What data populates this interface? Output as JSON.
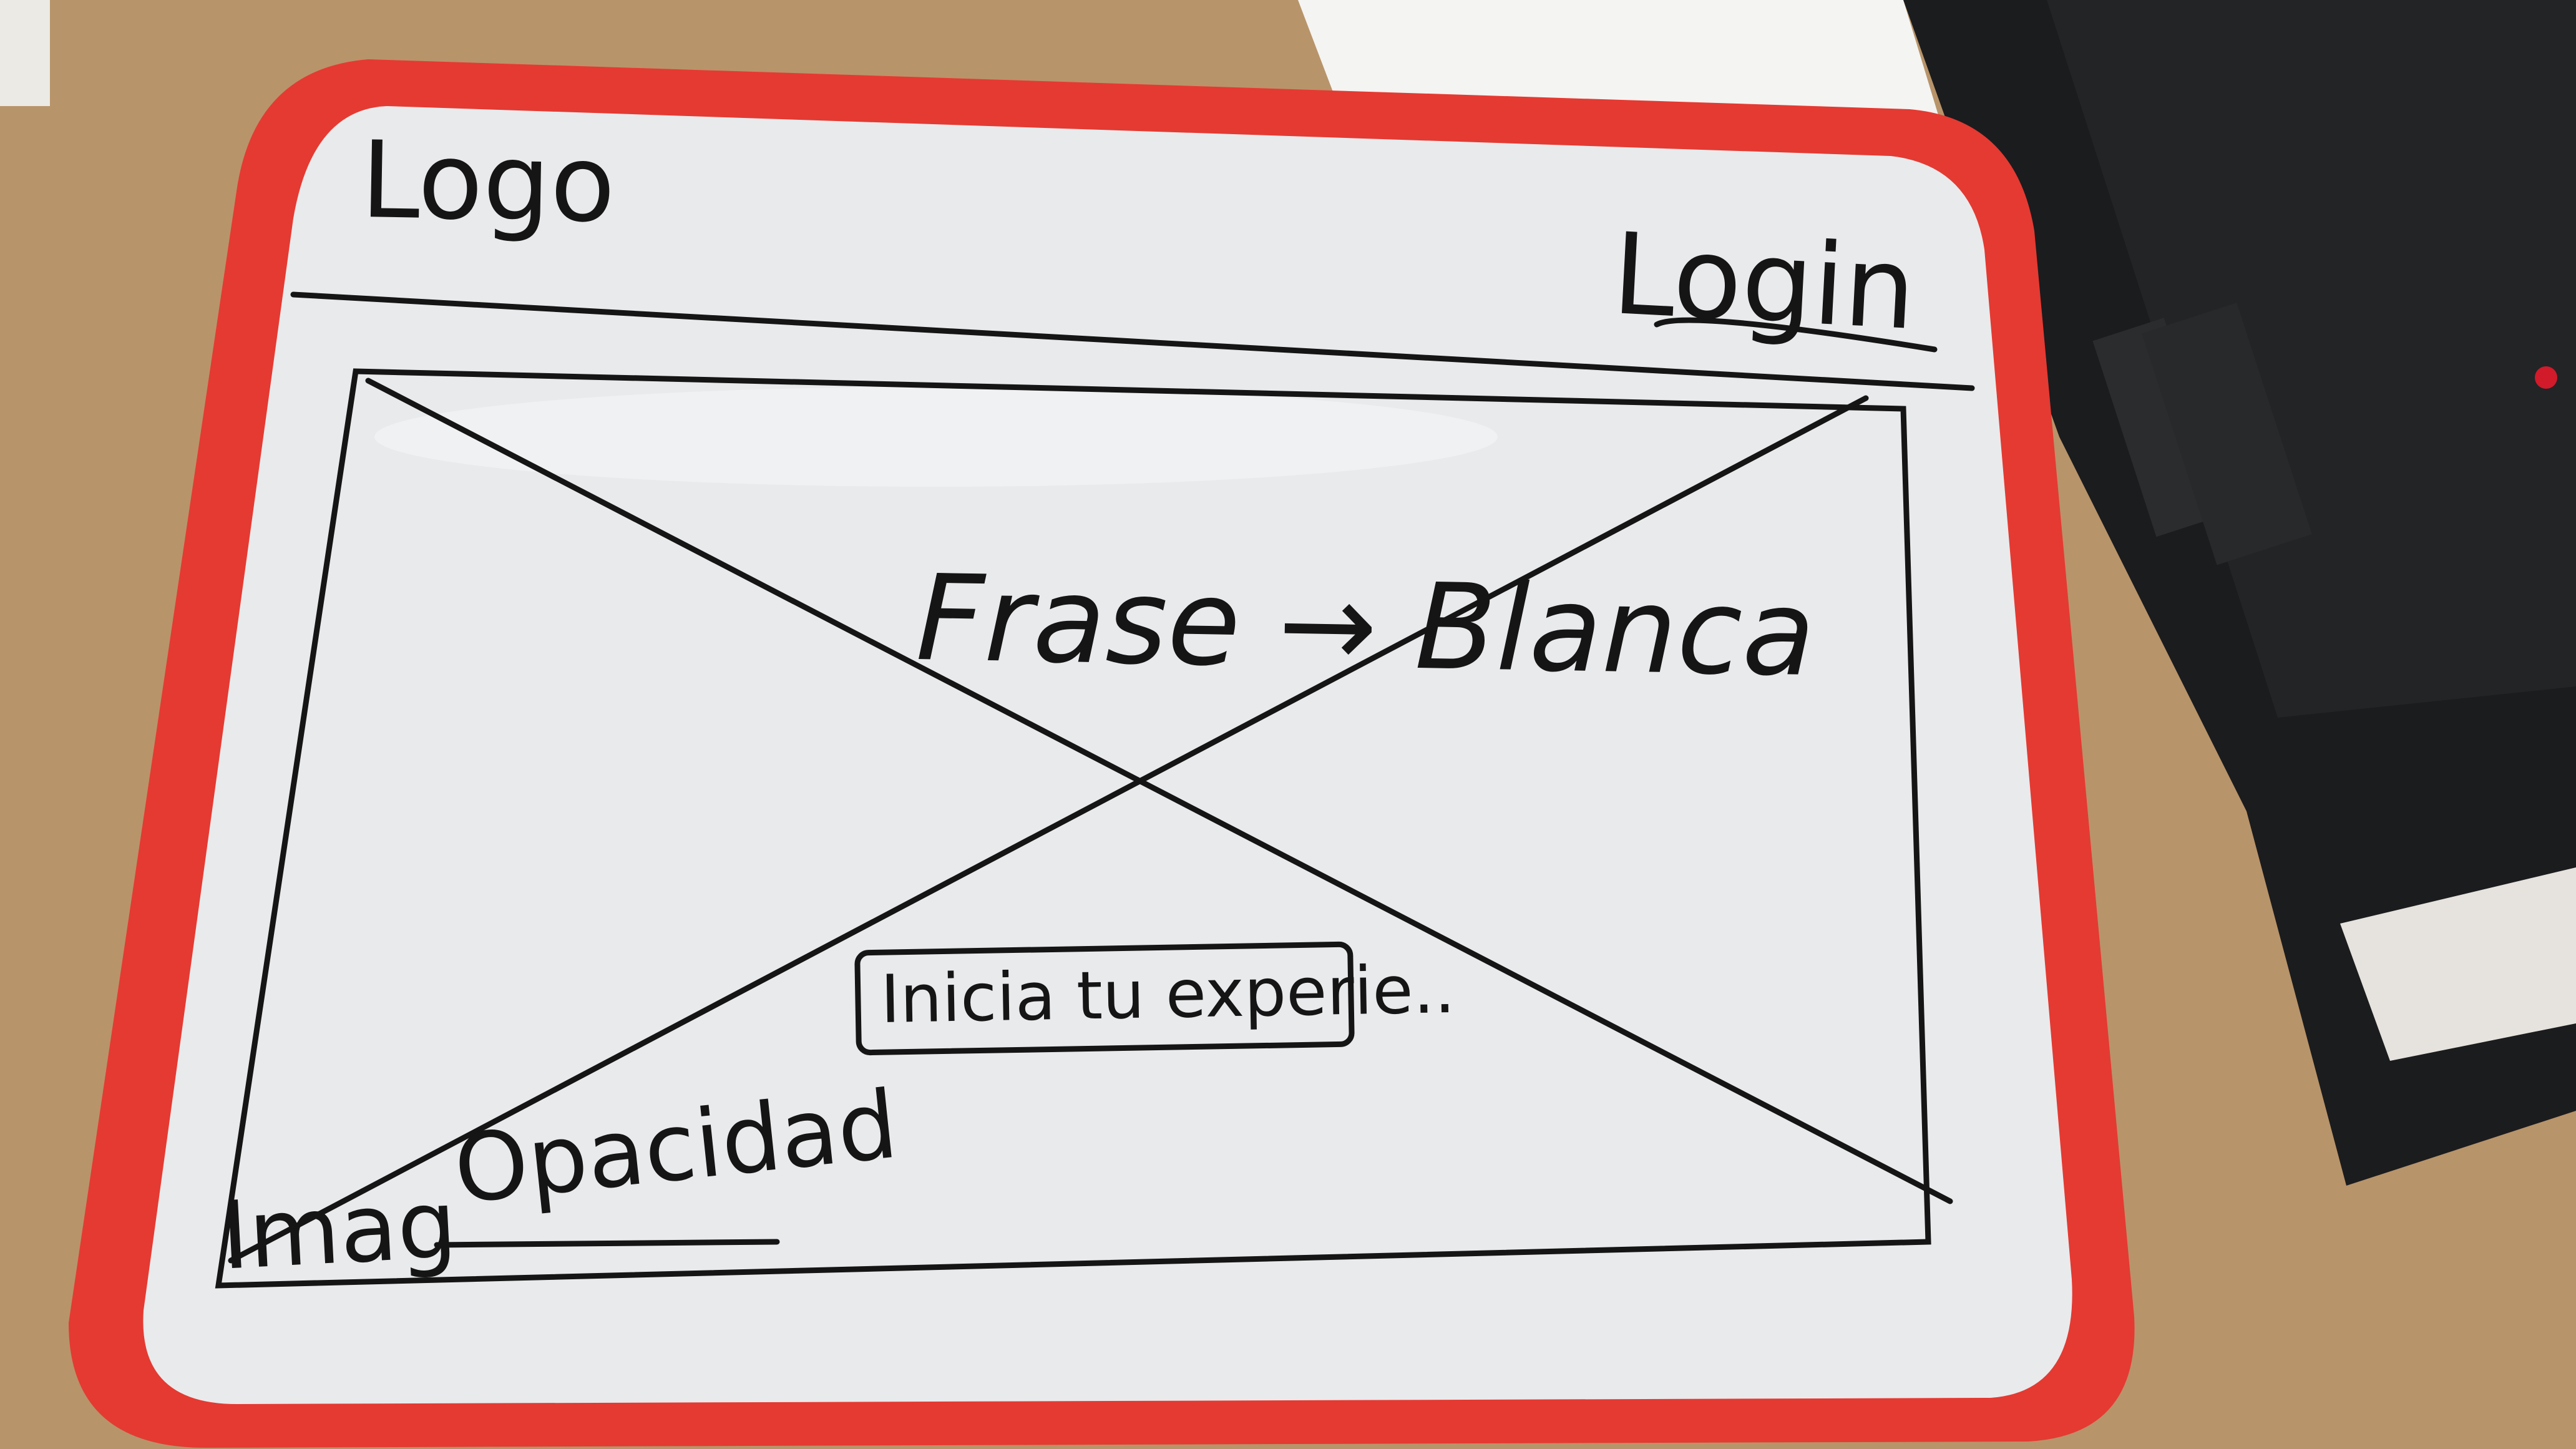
{
  "whiteboard": {
    "frame_color": "#e43a32",
    "surface_color": "#e9eaec",
    "marker_color": "#151515"
  },
  "wireframe": {
    "logo": "Logo",
    "login": "Login",
    "hero_phrase": "Frase",
    "hero_note": "Blanca",
    "cta_button": "Inicia tu experie..",
    "image_label": "Imag",
    "image_note": "Opacidad"
  },
  "surroundings": {
    "desk_color": "#b8946a",
    "laptop_color": "#1b1c1e"
  }
}
